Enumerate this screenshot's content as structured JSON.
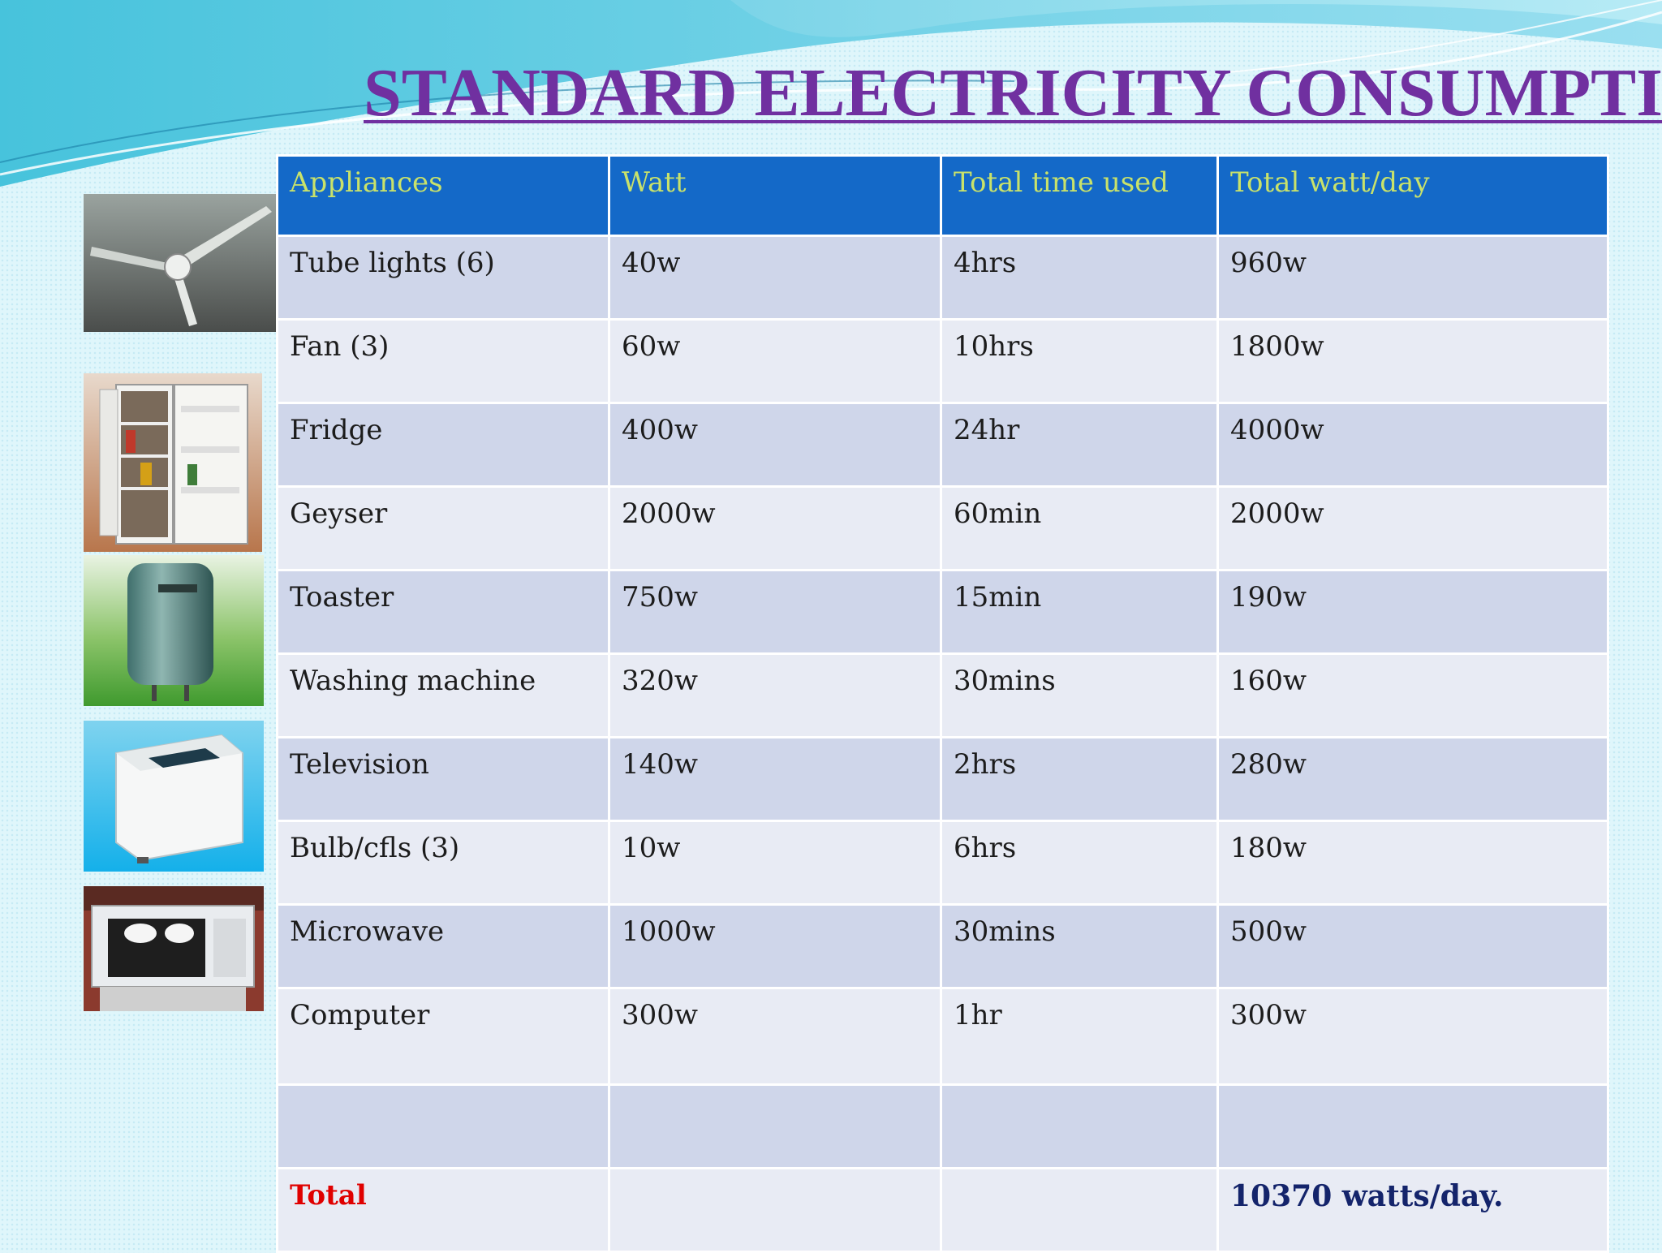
{
  "title": "STANDARD ELECTRICITY CONSUMPTION",
  "table": {
    "headers": [
      "Appliances",
      "Watt",
      "Total time used",
      "Total watt/day"
    ],
    "rows": [
      [
        "Tube lights  (6)",
        "40w",
        "4hrs",
        "960w"
      ],
      [
        "Fan  (3)",
        "60w",
        "10hrs",
        "1800w"
      ],
      [
        "Fridge",
        "400w",
        "24hr",
        "4000w"
      ],
      [
        "Geyser",
        "2000w",
        "60min",
        "2000w"
      ],
      [
        "Toaster",
        "750w",
        "15min",
        "190w"
      ],
      [
        "Washing machine",
        "320w",
        "30mins",
        "160w"
      ],
      [
        "Television",
        "140w",
        "2hrs",
        "280w"
      ],
      [
        "Bulb/cfls (3)",
        "10w",
        "6hrs",
        "180w"
      ],
      [
        "Microwave",
        "1000w",
        "30mins",
        "500w"
      ],
      [
        "Computer",
        "300w",
        "1hr",
        "300w"
      ],
      [
        "",
        "",
        "",
        ""
      ]
    ],
    "total": {
      "label": "Total",
      "value": "10370 watts/day."
    }
  },
  "images": [
    "ceiling-fan",
    "fridge",
    "geyser",
    "washing-machine",
    "microwave"
  ],
  "colors": {
    "title": "#7030a0",
    "header_bg": "#1469c8",
    "header_text": "#c9e26a",
    "row_odd": "#cfd6ea",
    "row_even": "#e8ebf4",
    "total_label": "#e00000",
    "total_value": "#14246b"
  }
}
